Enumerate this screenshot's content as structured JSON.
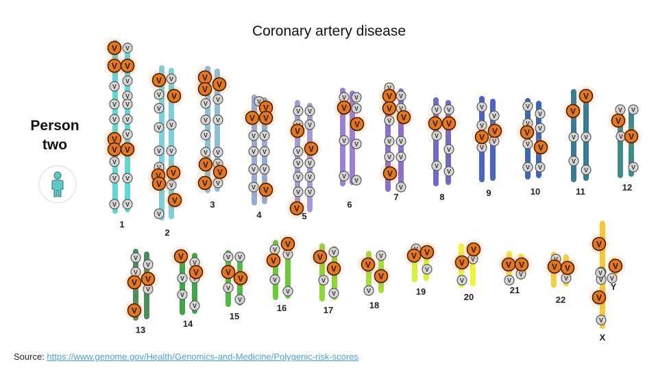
{
  "title": "Coronary artery disease",
  "person": {
    "line1": "Person",
    "line2": "two",
    "icon": "person-icon"
  },
  "variant_letter": "V",
  "source": {
    "label": "Source: ",
    "link_text": "https://www.genome.gov/Health/Genomics-and-Medicine/Polygenic-risk-scores"
  },
  "colors": {
    "risk_variant": "#e8761c",
    "neutral_variant": "#c8c8c8",
    "person_icon": "#5fc9c9"
  },
  "chromosomes": [
    {
      "label": "1",
      "color": "#62d6d2"
    },
    {
      "label": "2",
      "color": "#7fcfd8"
    },
    {
      "label": "3",
      "color": "#8cc0d8"
    },
    {
      "label": "4",
      "color": "#95aad6"
    },
    {
      "label": "5",
      "color": "#a39bd6"
    },
    {
      "label": "6",
      "color": "#9a7fd3"
    },
    {
      "label": "7",
      "color": "#8b6ed0"
    },
    {
      "label": "8",
      "color": "#6f6cc8"
    },
    {
      "label": "9",
      "color": "#4a64c0"
    },
    {
      "label": "10",
      "color": "#3f66b3"
    },
    {
      "label": "11",
      "color": "#3a7a94"
    },
    {
      "label": "12",
      "color": "#3e8a88"
    },
    {
      "label": "13",
      "color": "#4a8f5a"
    },
    {
      "label": "14",
      "color": "#3fa64a"
    },
    {
      "label": "15",
      "color": "#4fbc48"
    },
    {
      "label": "16",
      "color": "#6cc93c"
    },
    {
      "label": "17",
      "color": "#8fd43a"
    },
    {
      "label": "18",
      "color": "#a6dc3f"
    },
    {
      "label": "19",
      "color": "#d8f23a"
    },
    {
      "label": "20",
      "color": "#f2f23a"
    },
    {
      "label": "21",
      "color": "#f5e24a"
    },
    {
      "label": "22",
      "color": "#f5d045"
    },
    {
      "label": "X",
      "color": "#f5c93a"
    },
    {
      "label": "Y",
      "color": "#f5c93a"
    }
  ]
}
